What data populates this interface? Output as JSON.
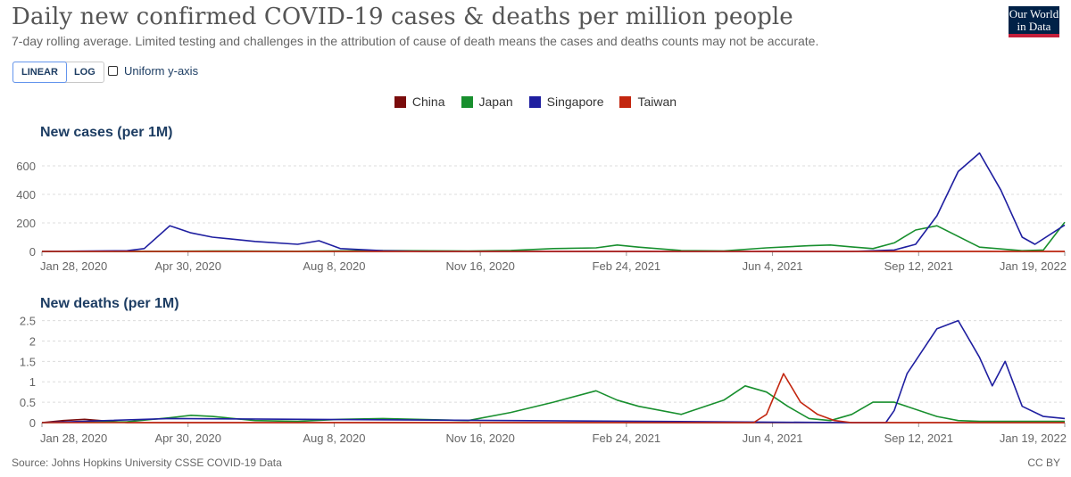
{
  "header": {
    "title": "Daily new confirmed COVID-19 cases & deaths per million people",
    "subtitle": "7-day rolling average. Limited testing and challenges in the attribution of cause of death means the cases and deaths counts may not be accurate.",
    "logo_line1": "Our World",
    "logo_line2": "in Data"
  },
  "controls": {
    "linear_label": "LINEAR",
    "log_label": "LOG",
    "selected_scale": "LINEAR",
    "uniform_label": "Uniform y-axis",
    "uniform_checked": false
  },
  "footer": {
    "source": "Source: Johns Hopkins University CSSE COVID-19 Data",
    "license": "CC BY"
  },
  "colors": {
    "China": "#7a0c0c",
    "Japan": "#188f2e",
    "Singapore": "#1f1fa0",
    "Taiwan": "#c3260f"
  },
  "chart_data": [
    {
      "type": "line",
      "title": "New cases (per 1M)",
      "x_ticks": [
        "Jan 28, 2020",
        "Apr 30, 2020",
        "Aug 8, 2020",
        "Nov 16, 2020",
        "Feb 24, 2021",
        "Jun 4, 2021",
        "Sep 12, 2021",
        "Jan 19, 2022"
      ],
      "ylim": [
        0,
        700
      ],
      "y_ticks": [
        "0",
        "200",
        "400",
        "600"
      ],
      "y_tick_values": [
        0,
        200,
        400,
        600
      ],
      "grid": true,
      "legend_position": "top-center",
      "x_unit": "months since Jan 2020",
      "series": [
        {
          "name": "China",
          "x": [
            0,
            24
          ],
          "y": [
            0,
            0
          ]
        },
        {
          "name": "Japan",
          "x": [
            0,
            3,
            4,
            6,
            8,
            10,
            11,
            12,
            13,
            13.5,
            14,
            15,
            16,
            17,
            18,
            18.5,
            19,
            19.5,
            20,
            20.5,
            21,
            22,
            23,
            23.5,
            24
          ],
          "y": [
            0,
            1,
            3,
            1,
            6,
            3,
            7,
            20,
            25,
            45,
            30,
            6,
            4,
            25,
            40,
            45,
            32,
            20,
            60,
            150,
            180,
            30,
            5,
            10,
            205
          ]
        },
        {
          "name": "Singapore",
          "x": [
            0,
            2,
            2.4,
            3,
            3.5,
            4,
            5,
            6,
            6.5,
            7,
            8,
            9,
            19,
            20,
            20.5,
            21,
            21.5,
            22,
            22.5,
            23,
            23.3,
            24
          ],
          "y": [
            0,
            5,
            20,
            180,
            130,
            100,
            70,
            50,
            75,
            20,
            5,
            0,
            0,
            10,
            50,
            250,
            560,
            690,
            430,
            100,
            50,
            185
          ]
        },
        {
          "name": "Taiwan",
          "x": [
            0,
            24
          ],
          "y": [
            0,
            0
          ]
        }
      ]
    },
    {
      "type": "line",
      "title": "New deaths (per 1M)",
      "x_ticks": [
        "Jan 28, 2020",
        "Apr 30, 2020",
        "Aug 8, 2020",
        "Nov 16, 2020",
        "Feb 24, 2021",
        "Jun 4, 2021",
        "Sep 12, 2021",
        "Jan 19, 2022"
      ],
      "ylim": [
        0,
        2.6
      ],
      "y_ticks": [
        "0",
        "0.5",
        "1",
        "1.5",
        "2",
        "2.5"
      ],
      "y_tick_values": [
        0,
        0.5,
        1,
        1.5,
        2,
        2.5
      ],
      "grid": true,
      "legend_position": "top-center",
      "x_unit": "months since Jan 2020",
      "series": [
        {
          "name": "China",
          "x": [
            0,
            0.5,
            1,
            2,
            24
          ],
          "y": [
            0,
            0.05,
            0.08,
            0,
            0
          ]
        },
        {
          "name": "Japan",
          "x": [
            0,
            2,
            3,
            3.5,
            4,
            5,
            6,
            7,
            8,
            10,
            11,
            12,
            13,
            13.5,
            14,
            15,
            16,
            16.5,
            17,
            17.5,
            18,
            18.5,
            19,
            19.5,
            20,
            21,
            21.5,
            22,
            23,
            24
          ],
          "y": [
            0,
            0.02,
            0.12,
            0.18,
            0.15,
            0.05,
            0.03,
            0.08,
            0.1,
            0.05,
            0.25,
            0.5,
            0.78,
            0.55,
            0.4,
            0.2,
            0.55,
            0.9,
            0.75,
            0.4,
            0.1,
            0.05,
            0.2,
            0.5,
            0.5,
            0.15,
            0.05,
            0.03,
            0.03,
            0.03
          ]
        },
        {
          "name": "Singapore",
          "x": [
            0,
            3,
            19,
            19.8,
            20,
            20.3,
            21,
            21.5,
            22,
            22.3,
            22.6,
            23,
            23.5,
            24
          ],
          "y": [
            0,
            0.1,
            0,
            0,
            0.3,
            1.2,
            2.3,
            2.5,
            1.6,
            0.9,
            1.5,
            0.4,
            0.15,
            0.1
          ]
        },
        {
          "name": "Taiwan",
          "x": [
            0,
            16.7,
            17,
            17.4,
            17.8,
            18.2,
            18.6,
            19,
            24
          ],
          "y": [
            0,
            0,
            0.2,
            1.2,
            0.5,
            0.2,
            0.05,
            0,
            0
          ]
        }
      ]
    }
  ]
}
